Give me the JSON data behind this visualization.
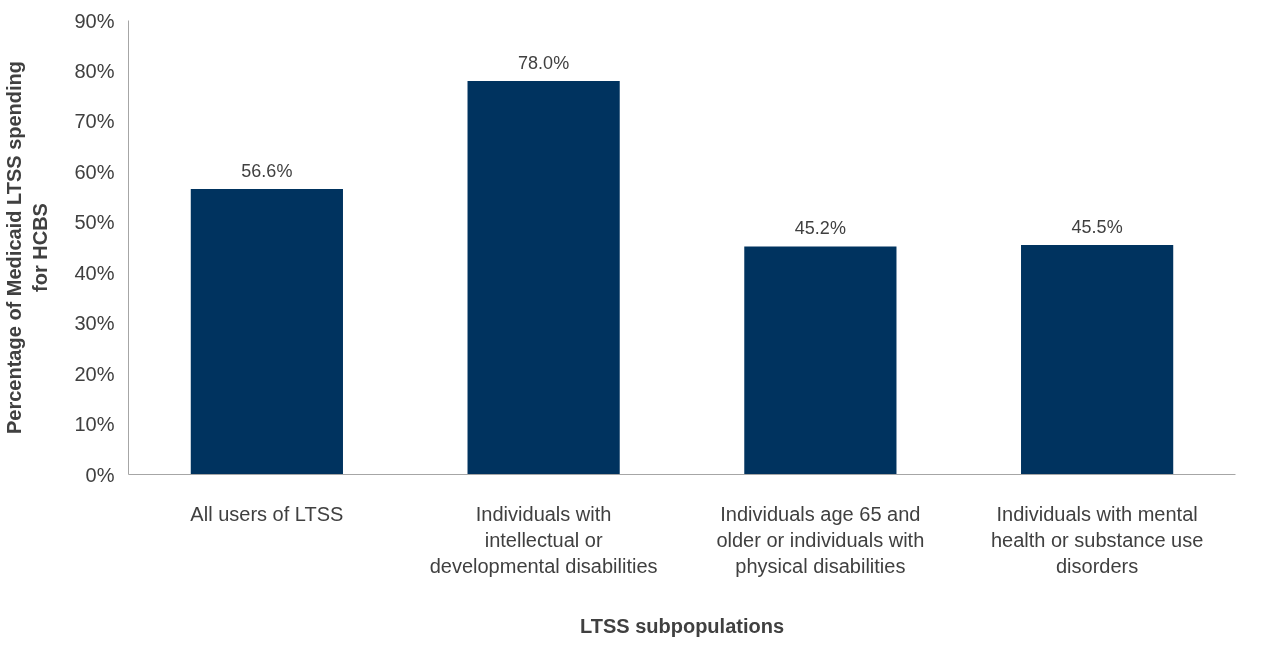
{
  "chart_data": {
    "type": "bar",
    "xlabel": "LTSS subpopulations",
    "ylabel": "Percentage of Medicaid LTSS spending for HCBS",
    "categories": [
      "All users of LTSS",
      "Individuals with intellectual or developmental disabilities",
      "Individuals age 65 and older or individuals with physical disabilities",
      "Individuals with mental health or substance use disorders"
    ],
    "values": [
      56.6,
      78.0,
      45.2,
      45.5
    ],
    "value_labels": [
      "56.6%",
      "78.0%",
      "45.2%",
      "45.5%"
    ],
    "color": "#00335f",
    "ylim": [
      0,
      90
    ],
    "yticks": [
      {
        "value": 0,
        "label": "0%"
      },
      {
        "value": 10,
        "label": "10%"
      },
      {
        "value": 20,
        "label": "20%"
      },
      {
        "value": 30,
        "label": "30%"
      },
      {
        "value": 40,
        "label": "40%"
      },
      {
        "value": 50,
        "label": "50%"
      },
      {
        "value": 60,
        "label": "60%"
      },
      {
        "value": 70,
        "label": "70%"
      },
      {
        "value": 80,
        "label": "80%"
      },
      {
        "value": 90,
        "label": "90%"
      }
    ],
    "grid": false
  }
}
